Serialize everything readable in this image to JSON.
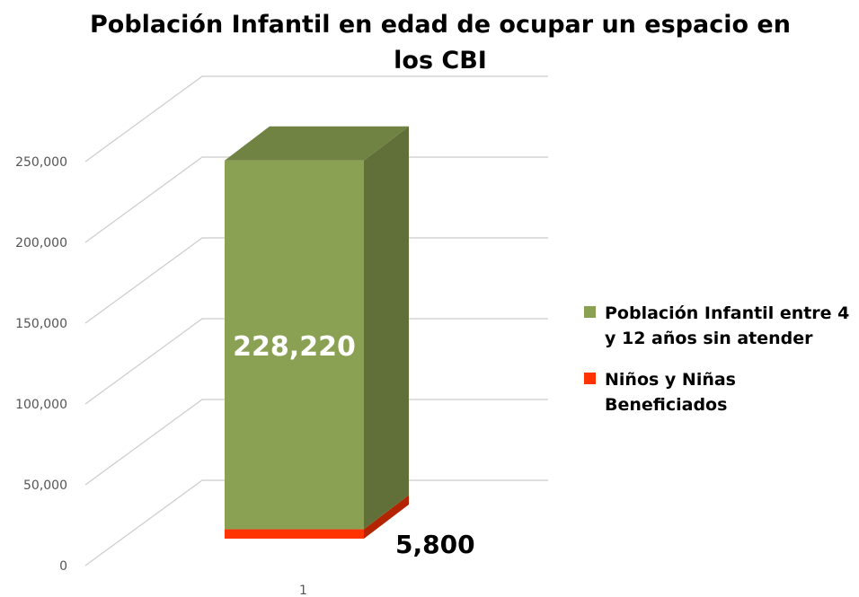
{
  "chart_data": {
    "type": "bar",
    "stacked": true,
    "title": "Población Infantil en edad de ocupar un espacio en los CBI",
    "categories": [
      "1"
    ],
    "series": [
      {
        "name": "Niños y Niñas Beneficiados",
        "color": "#ff3300",
        "values": [
          5800
        ],
        "value_labels": [
          "5,800"
        ]
      },
      {
        "name": "Población Infantil entre 4 y 12 años sin atender",
        "color": "#8aa052",
        "values": [
          228220
        ],
        "value_labels": [
          "228,220"
        ]
      }
    ],
    "ylim": [
      0,
      250000
    ],
    "yticks": [
      0,
      {
        "value": 50000,
        "label": "50,000"
      },
      {
        "value": 100000,
        "label": "100,000"
      },
      {
        "value": 150000,
        "label": "150,000"
      },
      {
        "value": 200000,
        "label": "200,000"
      },
      {
        "value": 250000,
        "label": "250,000"
      }
    ],
    "grid": true,
    "legend": "right"
  }
}
